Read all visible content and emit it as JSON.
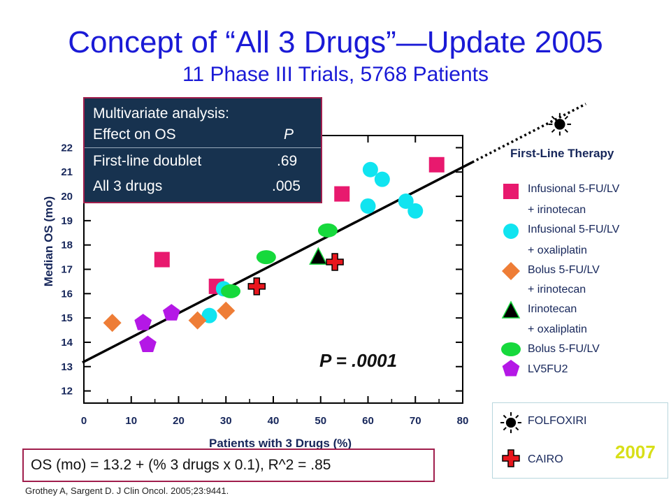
{
  "title": "Concept of “All 3 Drugs”—Update 2005",
  "subtitle": "11 Phase III Trials, 5768 Patients",
  "stats_box": {
    "line1": "Multivariate analysis:",
    "line2_label": "Effect on OS",
    "line2_value": "P",
    "line3_label": "First-line doublet",
    "line3_value": ".69",
    "line4_label": "All 3 drugs",
    "line4_value": ".005"
  },
  "p_value_label": "P = .0001",
  "equation": "OS (mo) = 13.2 + (% 3 drugs x 0.1), R^2 = .85",
  "citation": "Grothey A, Sargent D. J Clin Oncol. 2005;23:9441.",
  "legend": {
    "title": "First-Line Therapy",
    "lines": [
      "Infusional 5-FU/LV",
      "+ irinotecan",
      "Infusional 5-FU/LV",
      "+ oxaliplatin",
      "Bolus 5-FU/LV",
      "+ irinotecan",
      "Irinotecan",
      "+ oxaliplatin",
      "Bolus 5-FU/LV",
      "LV5FU2"
    ],
    "lines2": [
      "FOLFOXIRI",
      "CAIRO"
    ],
    "year": "2007"
  },
  "colors": {
    "infusional_irinotecan": "#e8196e",
    "infusional_oxaliplatin": "#10e4f0",
    "bolus_irinotecan": "#ee7d36",
    "irinotecan_oxaliplatin": "#000000",
    "bolus_5fu": "#16d93c",
    "lv5fu2": "#b418e6",
    "cairo": "#e8161d",
    "title": "#1a1ad6"
  },
  "chart_data": {
    "type": "scatter",
    "xlabel": "Patients with 3 Drugs (%)",
    "ylabel": "Median OS (mo)",
    "xlim": [
      0,
      80
    ],
    "ylim": [
      11.5,
      22.5
    ],
    "xticks": [
      0,
      10,
      20,
      30,
      40,
      50,
      60,
      70,
      80
    ],
    "yticks": [
      12,
      13,
      14,
      15,
      16,
      17,
      18,
      19,
      20,
      21,
      22
    ],
    "regression": {
      "intercept": 13.2,
      "slope": 0.1
    },
    "series": [
      {
        "name": "Infusional 5-FU/LV + irinotecan",
        "marker": "square",
        "color_key": "infusional_irinotecan",
        "points": [
          [
            16.5,
            17.4
          ],
          [
            28,
            16.3
          ],
          [
            54.5,
            20.1
          ],
          [
            74.5,
            21.3
          ]
        ]
      },
      {
        "name": "Infusional 5-FU/LV + oxaliplatin",
        "marker": "circle",
        "color_key": "infusional_oxaliplatin",
        "points": [
          [
            26.5,
            15.1
          ],
          [
            29.5,
            16.2
          ],
          [
            60,
            19.6
          ],
          [
            60.5,
            21.1
          ],
          [
            63,
            20.7
          ],
          [
            68,
            19.8
          ],
          [
            70,
            19.4
          ]
        ]
      },
      {
        "name": "Bolus 5-FU/LV + irinotecan",
        "marker": "diamond",
        "color_key": "bolus_irinotecan",
        "points": [
          [
            6,
            14.8
          ],
          [
            24,
            14.9
          ],
          [
            30,
            15.3
          ]
        ]
      },
      {
        "name": "Irinotecan + oxaliplatin",
        "marker": "triangle",
        "color_key": "irinotecan_oxaliplatin",
        "points": [
          [
            49.5,
            17.5
          ]
        ]
      },
      {
        "name": "Bolus 5-FU/LV",
        "marker": "ellipse",
        "color_key": "bolus_5fu",
        "points": [
          [
            31,
            16.1
          ],
          [
            38.5,
            17.5
          ],
          [
            51.5,
            18.6
          ]
        ]
      },
      {
        "name": "LV5FU2",
        "marker": "pentagon",
        "color_key": "lv5fu2",
        "points": [
          [
            12.5,
            14.8
          ],
          [
            13.5,
            13.9
          ],
          [
            18.5,
            15.2
          ]
        ]
      },
      {
        "name": "CAIRO",
        "marker": "cross",
        "color_key": "cairo",
        "points": [
          [
            36.5,
            16.3
          ],
          [
            53,
            17.3
          ]
        ]
      }
    ]
  }
}
